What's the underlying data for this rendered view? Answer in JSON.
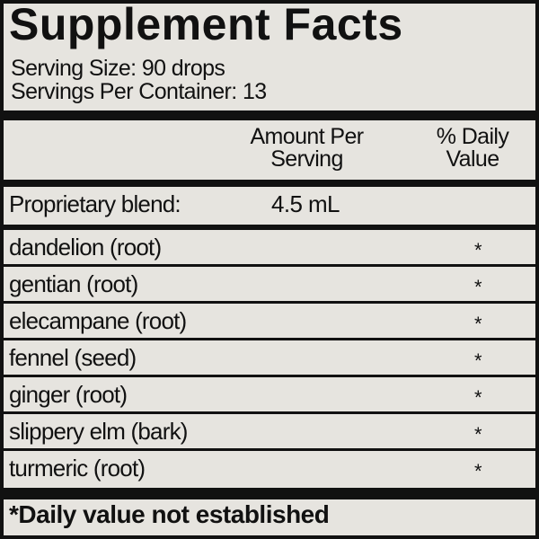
{
  "title": "Supplement Facts",
  "serving_size": "Serving Size: 90 drops",
  "servings_per_container": "Servings Per Container: 13",
  "header": {
    "amount_line1": "Amount Per",
    "amount_line2": "Serving",
    "dv_line1": "% Daily",
    "dv_line2": "Value"
  },
  "blend": {
    "name": "Proprietary blend:",
    "amount": "4.5 mL"
  },
  "ingredients": [
    {
      "name": "dandelion (root)",
      "dv": "*"
    },
    {
      "name": "gentian (root)",
      "dv": "*"
    },
    {
      "name": "elecampane (root)",
      "dv": "*"
    },
    {
      "name": "fennel (seed)",
      "dv": "*"
    },
    {
      "name": "ginger (root)",
      "dv": "*"
    },
    {
      "name": "slippery elm (bark)",
      "dv": "*"
    },
    {
      "name": "turmeric (root)",
      "dv": "*"
    }
  ],
  "footnote": "*Daily value not established",
  "colors": {
    "background": "#e6e4df",
    "ink": "#111111"
  }
}
